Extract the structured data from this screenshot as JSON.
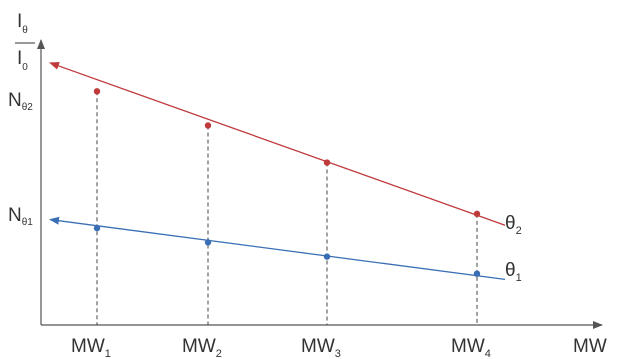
{
  "chart_data": {
    "type": "line",
    "y_axis_label": {
      "numerator": "I",
      "numerator_sub": "θ",
      "denominator": "I",
      "denominator_sub": "0"
    },
    "xlabel": "MW",
    "categories": [
      {
        "base": "MW",
        "sub": "1"
      },
      {
        "base": "MW",
        "sub": "2"
      },
      {
        "base": "MW",
        "sub": "3"
      },
      {
        "base": "MW",
        "sub": "4"
      }
    ],
    "y_ticks": [
      {
        "base": "N",
        "sub": "θ2",
        "series": "theta2"
      },
      {
        "base": "N",
        "sub": "θ1",
        "series": "theta1"
      }
    ],
    "series": [
      {
        "id": "theta2",
        "name": "θ",
        "name_sub": "2",
        "color": "#c0393b",
        "values": [
          0.82,
          0.7,
          0.57,
          0.39
        ],
        "intercept": 0.92,
        "end_value": 0.35
      },
      {
        "id": "theta1",
        "name": "θ",
        "name_sub": "1",
        "color": "#3a6fb5",
        "values": [
          0.34,
          0.29,
          0.24,
          0.18
        ],
        "intercept": 0.37,
        "end_value": 0.16
      }
    ],
    "dashed_guides": true,
    "grid": false,
    "legend": "inline-end-labels"
  }
}
